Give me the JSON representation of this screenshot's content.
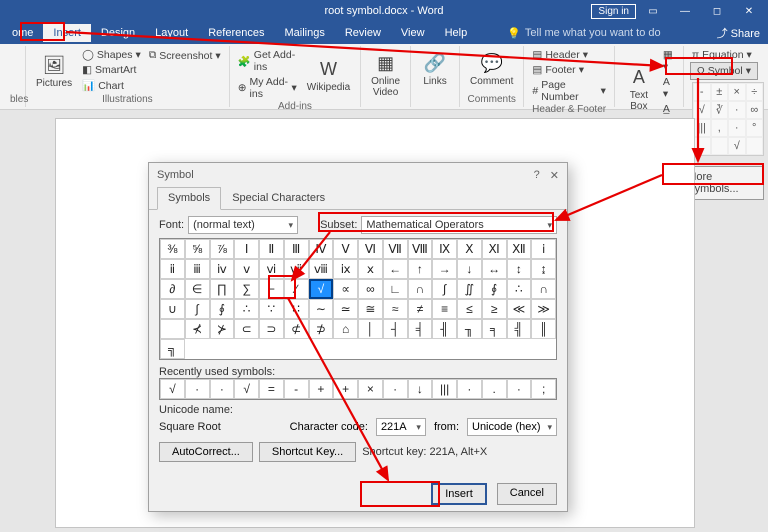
{
  "titlebar": {
    "title": "root symbol.docx - Word",
    "signin": "Sign in"
  },
  "tabs": {
    "items": [
      "ome",
      "Insert",
      "Design",
      "Layout",
      "References",
      "Mailings",
      "Review",
      "View",
      "Help"
    ],
    "active_index": 1,
    "tell_me": "Tell me what you want to do",
    "share": "Share"
  },
  "ribbon": {
    "tables": {
      "label": "bles"
    },
    "illustrations": {
      "label": "Illustrations",
      "pictures": "Pictures",
      "shapes": "Shapes",
      "smartart": "SmartArt",
      "chart": "Chart",
      "screenshot": "Screenshot"
    },
    "addins": {
      "label": "Add-ins",
      "get": "Get Add-ins",
      "my": "My Add-ins",
      "wiki": "Wikipedia"
    },
    "media": {
      "video": "Online\nVideo",
      "label": " "
    },
    "links": {
      "links": "Links",
      "label": " "
    },
    "comments": {
      "comment": "Comment",
      "label": "Comments"
    },
    "header": {
      "header": "Header",
      "footer": "Footer",
      "page": "Page Number",
      "label": "Header & Footer"
    },
    "text": {
      "textbox": "Text\nBox",
      "label": "Text"
    },
    "symbols": {
      "equation": "Equation",
      "symbol": "Symbol"
    }
  },
  "panel": {
    "rows": [
      [
        "-",
        "±",
        "×",
        "÷"
      ],
      [
        "√",
        "∛",
        "·",
        "∞"
      ],
      [
        "|||",
        ",",
        "·",
        "°"
      ],
      [
        " ",
        " ",
        "√",
        " "
      ]
    ]
  },
  "more_symbols": {
    "label": "More Symbols..."
  },
  "dialog": {
    "title": "Symbol",
    "tabs": [
      "Symbols",
      "Special Characters"
    ],
    "font_label": "Font:",
    "font_value": "(normal text)",
    "subset_label": "Subset:",
    "subset_value": "Mathematical Operators",
    "grid": [
      [
        "⅜",
        "⅝",
        "⅞",
        "Ⅰ",
        "Ⅱ",
        "Ⅲ",
        "Ⅳ",
        "Ⅴ",
        "Ⅵ",
        "Ⅶ",
        "Ⅷ",
        "Ⅸ",
        "Ⅹ",
        "Ⅺ",
        "Ⅻ",
        "ⅰ"
      ],
      [
        "ⅱ",
        "ⅲ",
        "ⅳ",
        "ⅴ",
        "ⅵ",
        "ⅶ",
        "ⅷ",
        "ⅸ",
        "ⅹ",
        "←",
        "↑",
        "→",
        "↓",
        "↔",
        "↕",
        "↨"
      ],
      [
        "∂",
        "∈",
        "∏",
        "∑",
        "−",
        "∕",
        "√",
        "∝",
        "∞",
        "∟",
        "∩",
        "∫",
        "∬",
        "∮",
        "∴",
        "∩",
        "∪"
      ],
      [
        "∫",
        "∮",
        "∴",
        "∵",
        "∷",
        "∼",
        "≃",
        "≅",
        "≈",
        "≠",
        "≡",
        "≤",
        "≥",
        "≪",
        "≫",
        ""
      ],
      [
        "⊀",
        "⊁",
        "⊂",
        "⊃",
        "⊄",
        "⊅",
        "⌂",
        "│",
        "┤",
        "╡",
        "╢",
        "╖",
        "╕",
        "╣",
        "║",
        "╗"
      ]
    ],
    "selected": {
      "row": 2,
      "col": 6
    },
    "recent_label": "Recently used symbols:",
    "recent": [
      "√",
      "·",
      "·",
      "√",
      "=",
      "-",
      "+",
      "+",
      "×",
      "·",
      "↓",
      "|||",
      "·",
      ".",
      "·",
      ";"
    ],
    "unicode_name_label": "Unicode name:",
    "unicode_name": "Square Root",
    "charcode_label": "Character code:",
    "charcode": "221A",
    "from_label": "from:",
    "from_value": "Unicode (hex)",
    "autocorrect": "AutoCorrect...",
    "shortcutkey": "Shortcut Key...",
    "shortcut_text": "Shortcut key: 221A, Alt+X",
    "insert": "Insert",
    "cancel": "Cancel"
  }
}
